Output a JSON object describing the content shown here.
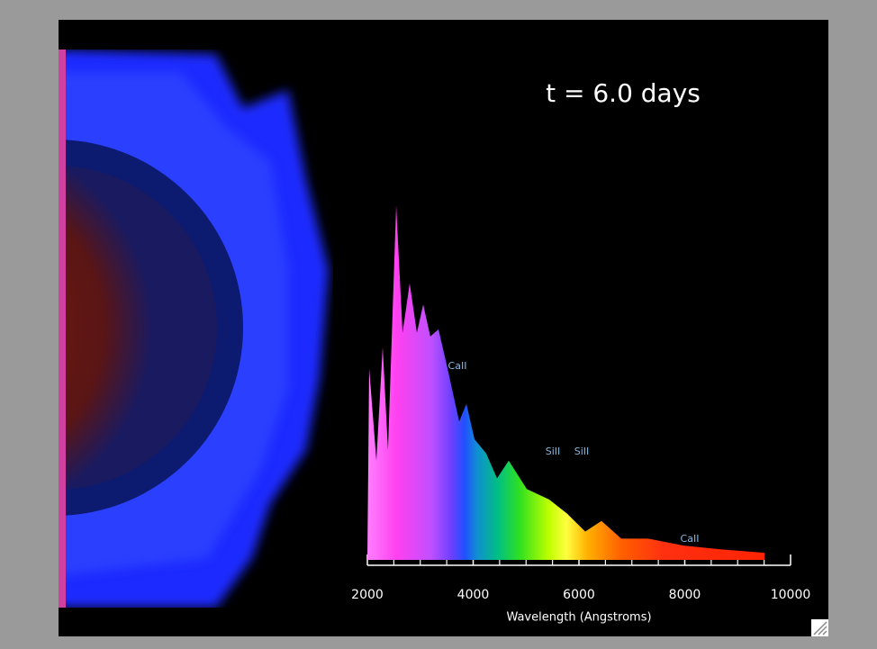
{
  "chart_data": {
    "type": "area",
    "title": "t = 6.0 days",
    "x_label": "Wavelength (Angstroms)",
    "x": [
      2000,
      2034,
      2170,
      2290,
      2390,
      2545,
      2665,
      2800,
      2936,
      3055,
      3190,
      3345,
      3515,
      3736,
      3872,
      4025,
      4247,
      4451,
      4672,
      5013,
      5438,
      5779,
      6119,
      6426,
      6800,
      7310,
      7991,
      8672,
      9506
    ],
    "series": [
      {
        "values": [
          0,
          0.54,
          0.28,
          0.6,
          0.31,
          1.0,
          0.64,
          0.78,
          0.64,
          0.72,
          0.63,
          0.65,
          0.54,
          0.39,
          0.44,
          0.34,
          0.3,
          0.23,
          0.28,
          0.2,
          0.17,
          0.13,
          0.08,
          0.11,
          0.06,
          0.06,
          0.04,
          0.03,
          0.02
        ]
      }
    ],
    "annotations": [
      "CaII",
      "SiII",
      "SiII",
      "CaII"
    ],
    "xlim": [
      2000,
      10000
    ],
    "xticks": [
      2000,
      4000,
      6000,
      8000,
      10000
    ],
    "xminorticks": [
      2500,
      3000,
      3500,
      4500,
      5000,
      5500,
      6500,
      7000,
      7500,
      8500,
      9000,
      9500
    ],
    "ylim": [
      0,
      1
    ]
  }
}
